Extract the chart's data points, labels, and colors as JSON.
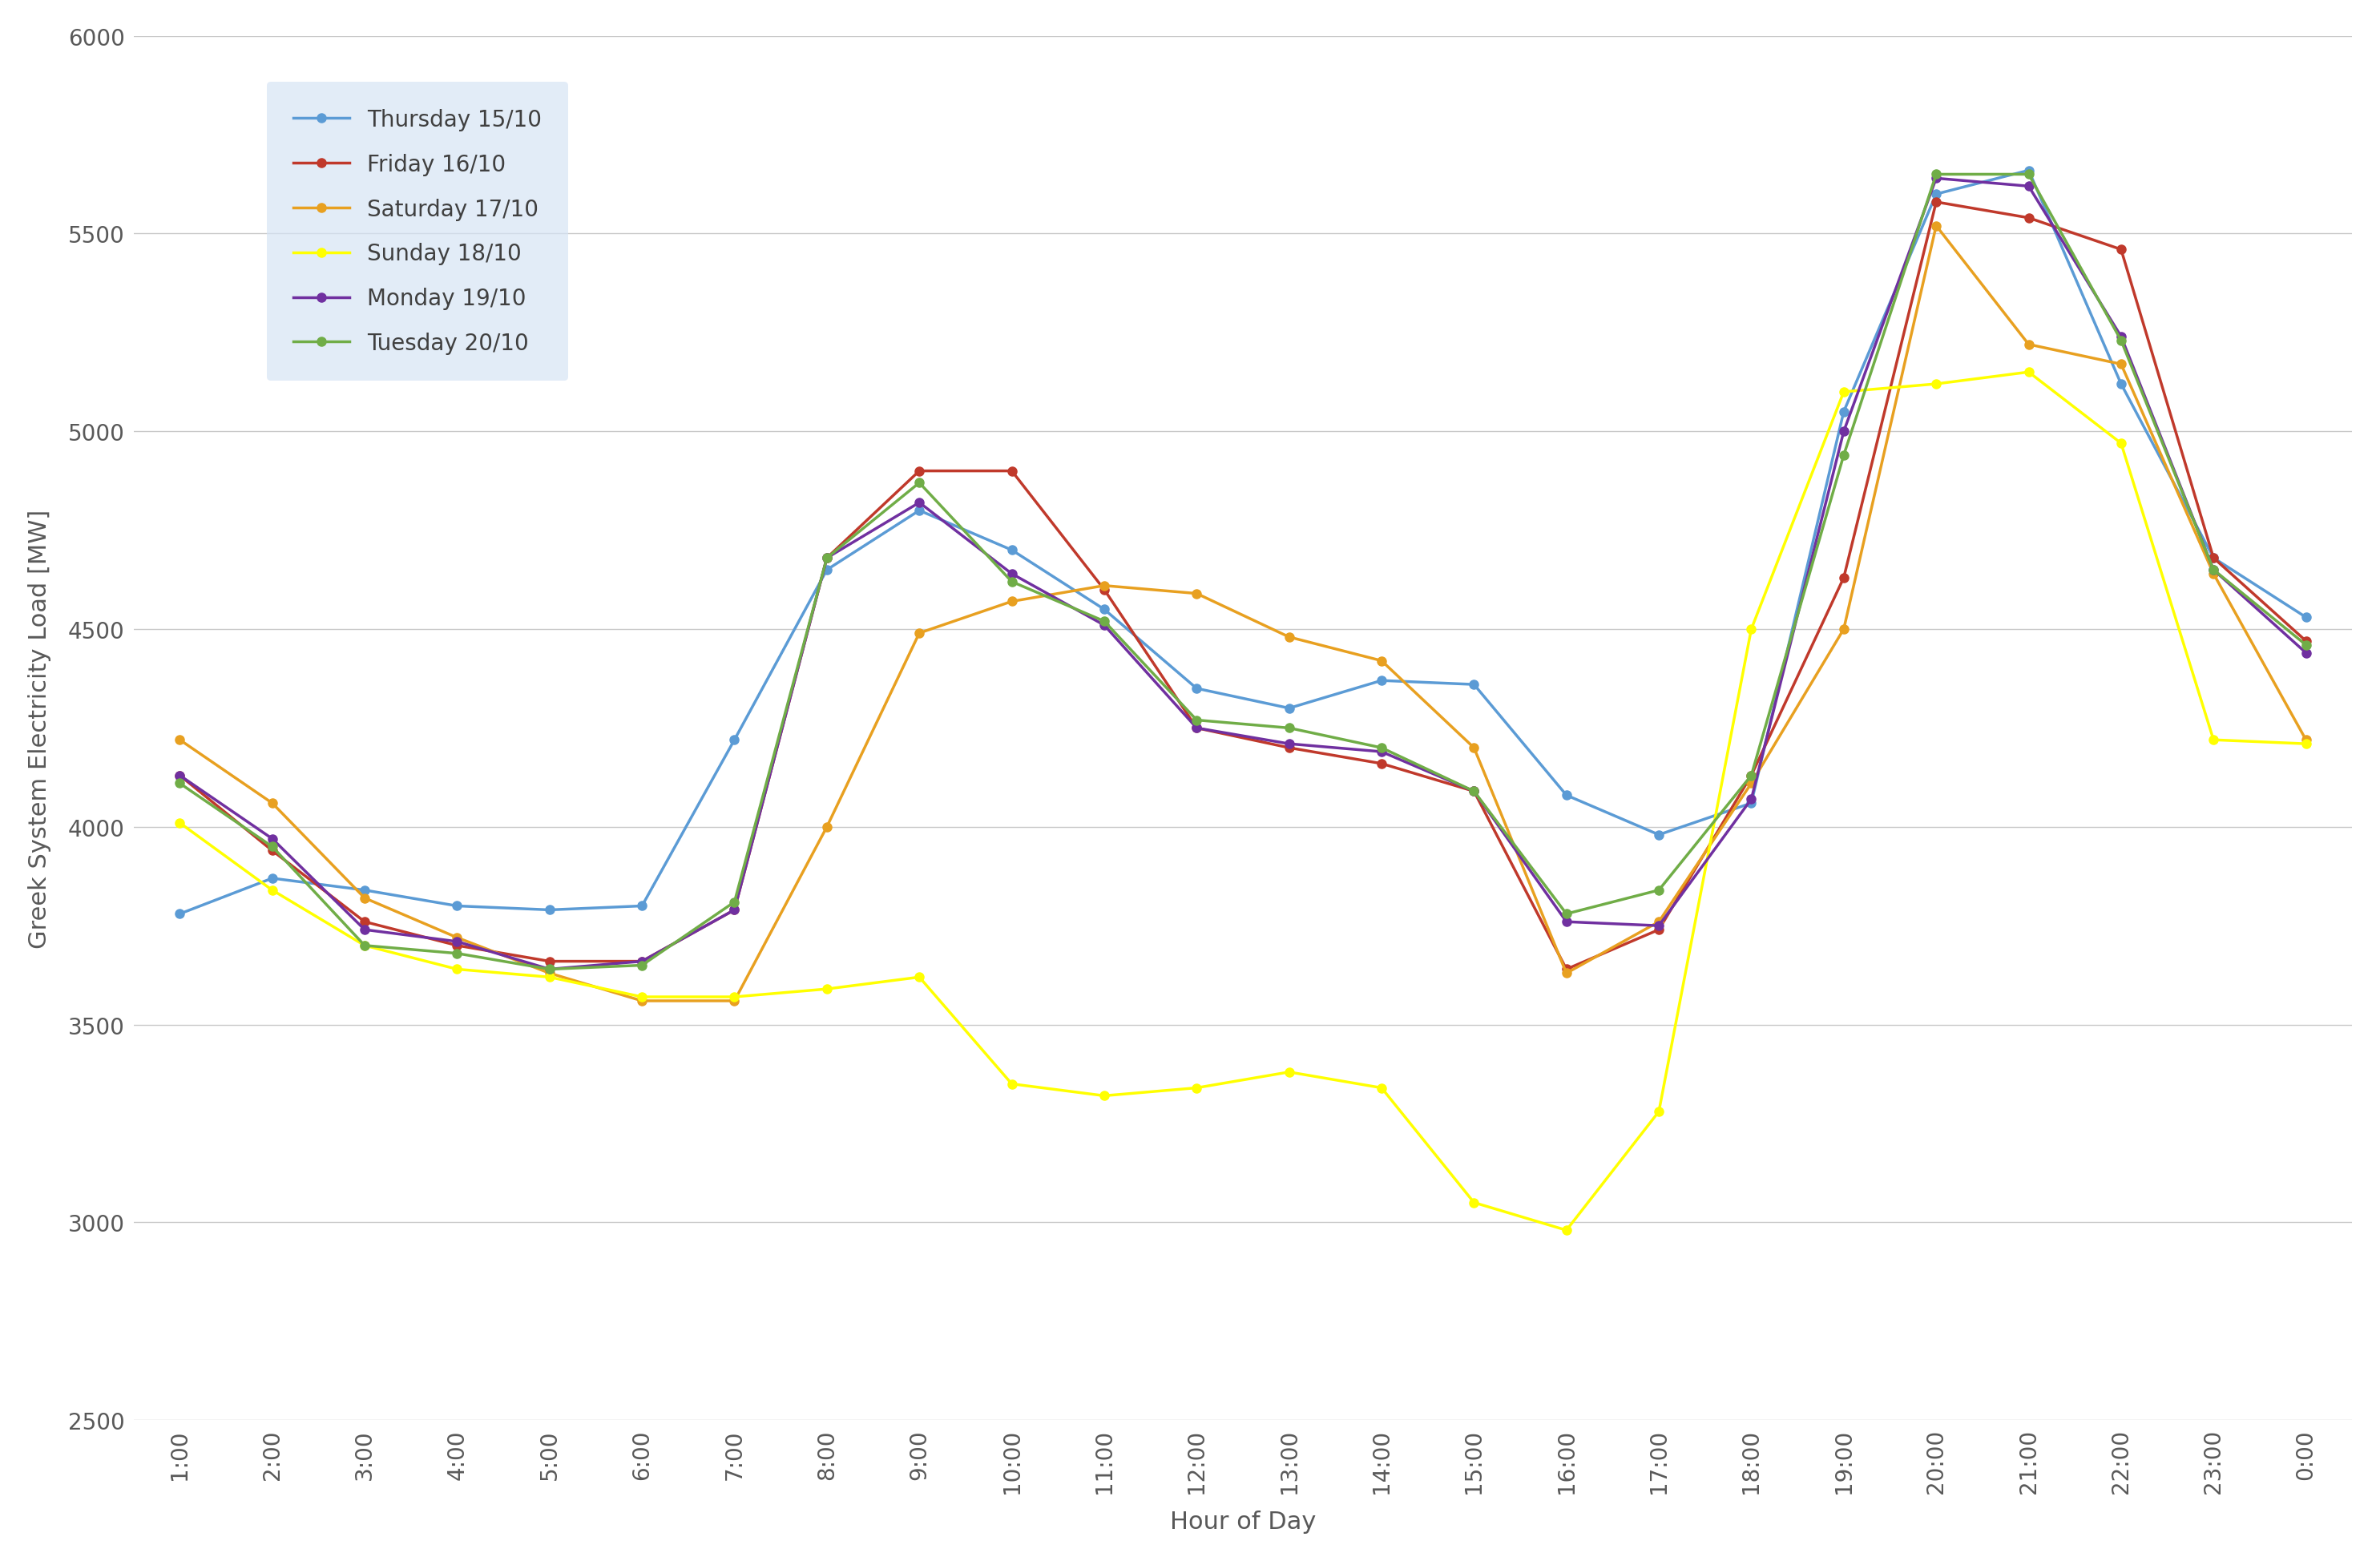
{
  "hours": [
    "1:00",
    "2:00",
    "3:00",
    "4:00",
    "5:00",
    "6:00",
    "7:00",
    "8:00",
    "9:00",
    "10:00",
    "11:00",
    "12:00",
    "13:00",
    "14:00",
    "15:00",
    "16:00",
    "17:00",
    "18:00",
    "19:00",
    "20:00",
    "21:00",
    "22:00",
    "23:00",
    "0:00"
  ],
  "series": [
    {
      "label": "Thursday 15/10",
      "color": "#5b9bd5",
      "data": [
        3780,
        3870,
        3840,
        3800,
        3790,
        3800,
        4220,
        4650,
        4800,
        4700,
        4550,
        4350,
        4300,
        4370,
        4360,
        4080,
        3980,
        4060,
        5050,
        5600,
        5660,
        5120,
        4680,
        4530
      ]
    },
    {
      "label": "Friday 16/10",
      "color": "#c0392b",
      "data": [
        4130,
        3940,
        3760,
        3700,
        3660,
        3660,
        3790,
        4680,
        4900,
        4900,
        4600,
        4250,
        4200,
        4160,
        4090,
        3640,
        3740,
        4130,
        4630,
        5580,
        5540,
        5460,
        4680,
        4470
      ]
    },
    {
      "label": "Saturday 17/10",
      "color": "#e8a020",
      "data": [
        4220,
        4060,
        3820,
        3720,
        3630,
        3560,
        3560,
        4000,
        4490,
        4570,
        4610,
        4590,
        4480,
        4420,
        4200,
        3630,
        3760,
        4110,
        4500,
        5520,
        5220,
        5170,
        4640,
        4220
      ]
    },
    {
      "label": "Sunday 18/10",
      "color": "#ffff00",
      "data": [
        4010,
        3840,
        3700,
        3640,
        3620,
        3570,
        3570,
        3590,
        3620,
        3350,
        3320,
        3340,
        3380,
        3340,
        3050,
        2980,
        3280,
        4500,
        5100,
        5120,
        5150,
        4970,
        4220,
        4210
      ]
    },
    {
      "label": "Monday 19/10",
      "color": "#7030a0",
      "data": [
        4130,
        3970,
        3740,
        3710,
        3640,
        3660,
        3790,
        4680,
        4820,
        4640,
        4510,
        4250,
        4210,
        4190,
        4090,
        3760,
        3750,
        4070,
        5000,
        5640,
        5620,
        5240,
        4650,
        4440
      ]
    },
    {
      "label": "Tuesday 20/10",
      "color": "#70ad47",
      "data": [
        4110,
        3950,
        3700,
        3680,
        3640,
        3650,
        3810,
        4680,
        4870,
        4620,
        4520,
        4270,
        4250,
        4200,
        4090,
        3780,
        3840,
        4130,
        4940,
        5650,
        5650,
        5230,
        4650,
        4460
      ]
    }
  ],
  "ylabel": "Greek System Electricity Load [MW]",
  "xlabel": "Hour of Day",
  "ylim": [
    2500,
    6000
  ],
  "yticks": [
    2500,
    3000,
    3500,
    4000,
    4500,
    5000,
    5500,
    6000
  ],
  "background_color": "#ffffff",
  "grid_color": "#c8c8c8",
  "legend_bg": "#d6e4f5",
  "label_fontsize": 22,
  "tick_fontsize": 20,
  "legend_fontsize": 20,
  "linewidth": 2.5,
  "markersize": 8
}
